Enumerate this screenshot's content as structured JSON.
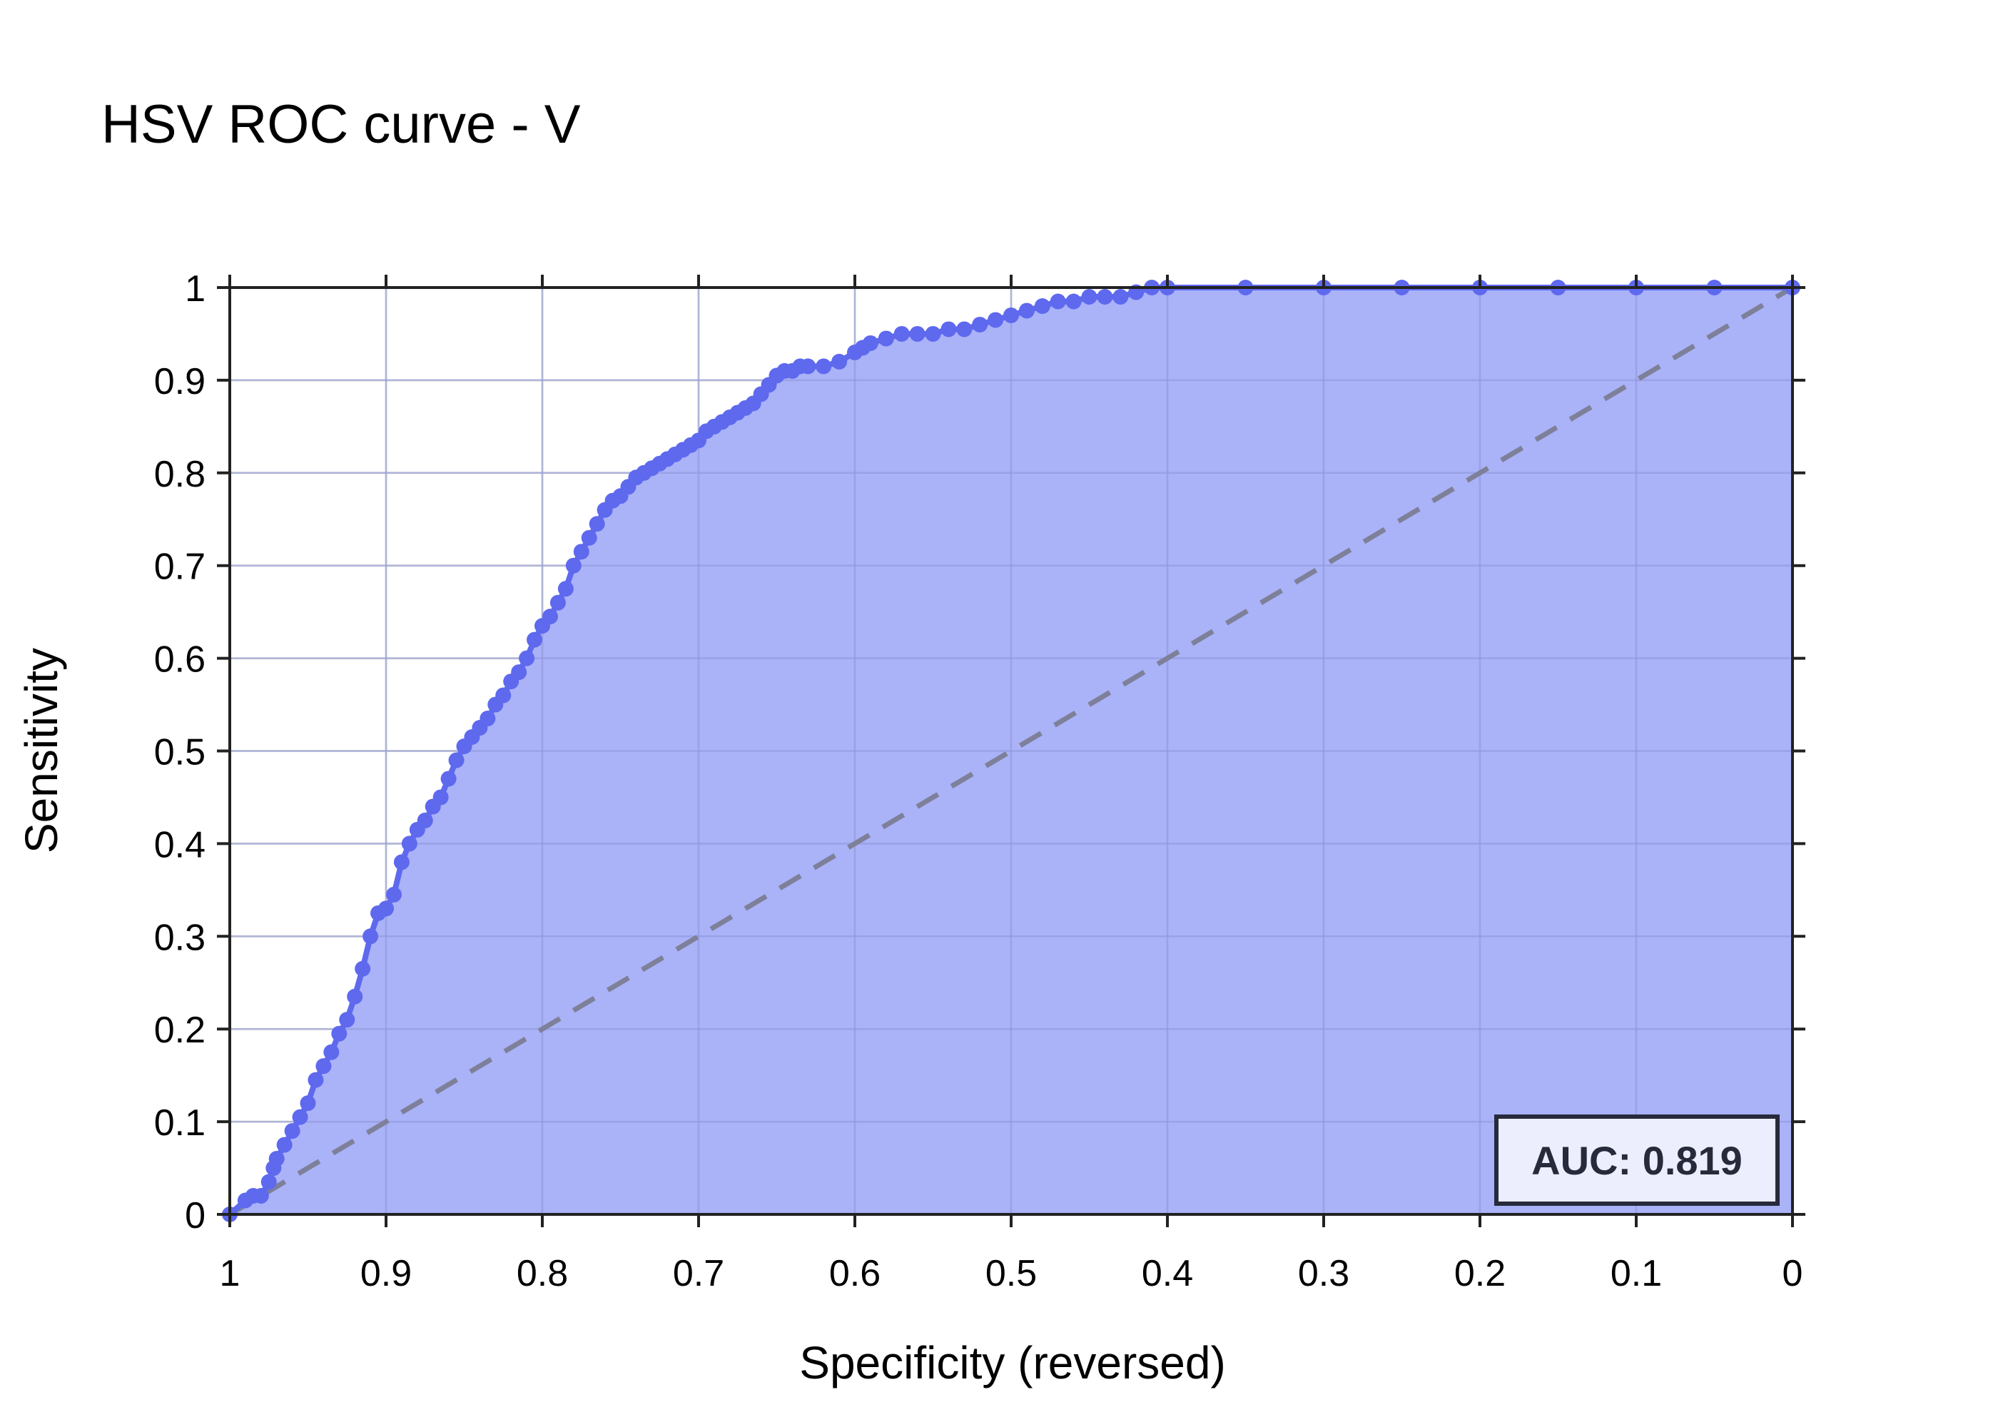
{
  "chart_data": {
    "type": "area",
    "title": "HSV ROC curve - V",
    "xlabel": "Specificity (reversed)",
    "ylabel": "Sensitivity",
    "xlim": [
      1,
      0
    ],
    "ylim": [
      0,
      1
    ],
    "x_reversed": true,
    "grid": true,
    "x_ticks": [
      "1",
      "0.9",
      "0.8",
      "0.7",
      "0.6",
      "0.5",
      "0.4",
      "0.3",
      "0.2",
      "0.1",
      "0"
    ],
    "y_ticks": [
      "0",
      "0.1",
      "0.2",
      "0.3",
      "0.4",
      "0.5",
      "0.6",
      "0.7",
      "0.8",
      "0.9",
      "1"
    ],
    "annotation": "AUC: 0.819",
    "colors": {
      "curve": "#5e69ee",
      "fill": "#aab2f8",
      "diagonal": "#7d8098",
      "grid": "#dcdcdc",
      "axis": "#222222"
    },
    "series": [
      {
        "x": [
          1.0,
          0.99,
          0.985,
          0.98,
          0.975,
          0.972,
          0.97,
          0.965,
          0.96,
          0.955,
          0.95,
          0.945,
          0.94,
          0.935,
          0.93,
          0.925,
          0.92,
          0.915,
          0.91,
          0.905,
          0.9,
          0.895,
          0.89,
          0.885,
          0.88,
          0.875,
          0.87,
          0.865,
          0.86,
          0.855,
          0.85,
          0.845,
          0.84,
          0.835,
          0.83,
          0.825,
          0.82,
          0.815,
          0.81,
          0.805,
          0.8,
          0.795,
          0.79,
          0.785,
          0.78,
          0.775,
          0.77,
          0.765,
          0.76,
          0.755,
          0.75,
          0.745,
          0.74,
          0.735,
          0.73,
          0.725,
          0.72,
          0.715,
          0.71,
          0.705,
          0.7,
          0.695,
          0.69,
          0.685,
          0.68,
          0.675,
          0.67,
          0.665,
          0.66,
          0.655,
          0.65,
          0.645,
          0.64,
          0.635,
          0.63,
          0.62,
          0.61,
          0.6,
          0.595,
          0.59,
          0.58,
          0.57,
          0.56,
          0.55,
          0.54,
          0.53,
          0.52,
          0.51,
          0.5,
          0.49,
          0.48,
          0.47,
          0.46,
          0.45,
          0.44,
          0.43,
          0.42,
          0.41,
          0.4,
          0.35,
          0.3,
          0.25,
          0.2,
          0.15,
          0.1,
          0.05,
          0.0
        ],
        "y": [
          0.0,
          0.015,
          0.02,
          0.02,
          0.035,
          0.05,
          0.06,
          0.075,
          0.09,
          0.105,
          0.12,
          0.145,
          0.16,
          0.175,
          0.195,
          0.21,
          0.235,
          0.265,
          0.3,
          0.325,
          0.33,
          0.345,
          0.38,
          0.4,
          0.415,
          0.425,
          0.44,
          0.45,
          0.47,
          0.49,
          0.505,
          0.515,
          0.525,
          0.535,
          0.55,
          0.56,
          0.575,
          0.585,
          0.6,
          0.62,
          0.635,
          0.645,
          0.66,
          0.675,
          0.7,
          0.715,
          0.73,
          0.745,
          0.76,
          0.77,
          0.775,
          0.785,
          0.795,
          0.8,
          0.805,
          0.81,
          0.815,
          0.82,
          0.825,
          0.83,
          0.835,
          0.845,
          0.85,
          0.855,
          0.86,
          0.865,
          0.87,
          0.875,
          0.885,
          0.895,
          0.905,
          0.91,
          0.91,
          0.915,
          0.915,
          0.915,
          0.92,
          0.93,
          0.935,
          0.94,
          0.945,
          0.95,
          0.95,
          0.95,
          0.955,
          0.955,
          0.96,
          0.965,
          0.97,
          0.975,
          0.98,
          0.985,
          0.985,
          0.99,
          0.99,
          0.99,
          0.995,
          1.0,
          1.0,
          1.0,
          1.0,
          1.0,
          1.0,
          1.0,
          1.0,
          1.0,
          1.0
        ]
      }
    ],
    "reference_line": {
      "x": [
        1,
        0
      ],
      "y": [
        0,
        1
      ]
    }
  }
}
